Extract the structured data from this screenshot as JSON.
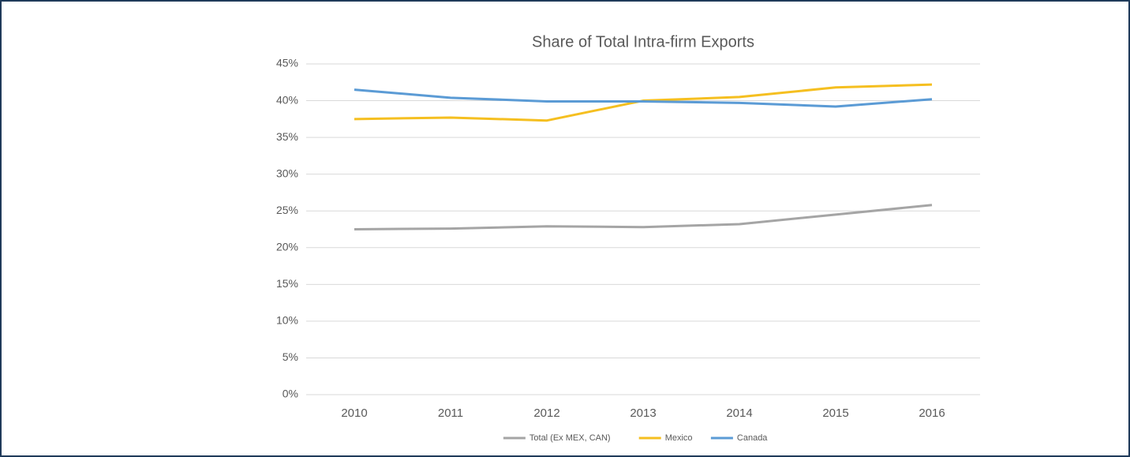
{
  "chart_data": {
    "type": "line",
    "title": "Share of Total Intra-firm Exports",
    "categories": [
      "2010",
      "2011",
      "2012",
      "2013",
      "2014",
      "2015",
      "2016"
    ],
    "series": [
      {
        "name": "Total (Ex MEX, CAN)",
        "color": "#a5a5a5",
        "values": [
          22.5,
          22.6,
          22.9,
          22.8,
          23.2,
          24.5,
          25.8
        ]
      },
      {
        "name": "Mexico",
        "color": "#f5bf20",
        "values": [
          37.5,
          37.7,
          37.3,
          40.0,
          40.5,
          41.8,
          42.2
        ]
      },
      {
        "name": "Canada",
        "color": "#5b9bd5",
        "values": [
          41.5,
          40.4,
          39.9,
          39.9,
          39.7,
          39.2,
          40.2
        ]
      }
    ],
    "ylim": [
      0,
      45
    ],
    "yticks": [
      {
        "value": 0,
        "label": "0%"
      },
      {
        "value": 5,
        "label": "5%"
      },
      {
        "value": 10,
        "label": "10%"
      },
      {
        "value": 15,
        "label": "15%"
      },
      {
        "value": 20,
        "label": "20%"
      },
      {
        "value": 25,
        "label": "25%"
      },
      {
        "value": 30,
        "label": "30%"
      },
      {
        "value": 35,
        "label": "35%"
      },
      {
        "value": 40,
        "label": "40%"
      },
      {
        "value": 45,
        "label": "45%"
      }
    ],
    "grid": true,
    "legend": "bottom"
  }
}
